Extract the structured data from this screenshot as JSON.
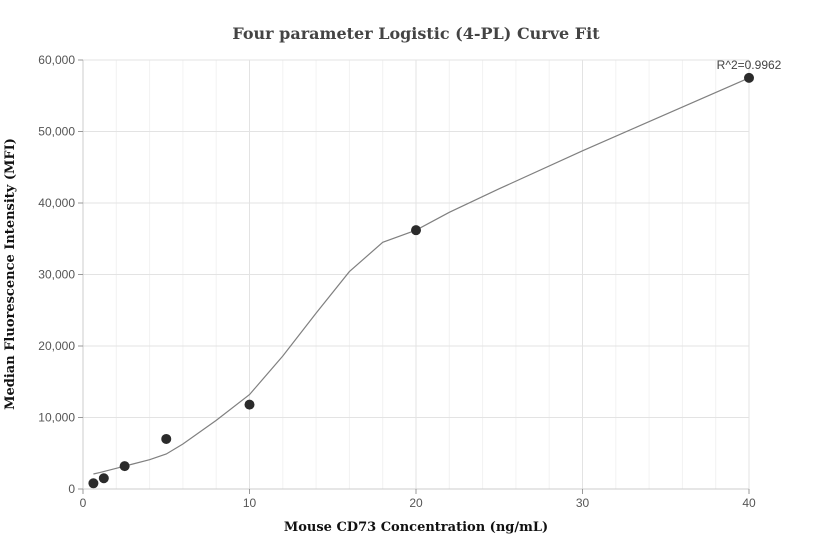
{
  "chart_data": {
    "type": "scatter",
    "title": "Four parameter Logistic (4-PL) Curve Fit",
    "xlabel": "Mouse CD73 Concentration (ng/mL)",
    "ylabel": "Median Fluorescence Intensity (MFI)",
    "xlim": [
      0,
      40
    ],
    "ylim": [
      0,
      60000
    ],
    "xticks": [
      0,
      10,
      20,
      30,
      40
    ],
    "xtick_labels": [
      "0",
      "10",
      "20",
      "30",
      "40"
    ],
    "yticks": [
      0,
      10000,
      20000,
      30000,
      40000,
      50000,
      60000
    ],
    "ytick_labels": [
      "0",
      "10,000",
      "20,000",
      "30,000",
      "40,000",
      "50,000",
      "60,000"
    ],
    "grid": true,
    "annotation": "R^2=0.9962",
    "series": [
      {
        "kind": "points",
        "x": [
          0.625,
          1.25,
          2.5,
          5,
          10,
          20,
          40
        ],
        "y": [
          800,
          1500,
          3200,
          7000,
          11800,
          36200,
          57500
        ]
      },
      {
        "kind": "fit-curve",
        "x": [
          0.625,
          1,
          2,
          3,
          4,
          5,
          6,
          8,
          10,
          12,
          14,
          16,
          18,
          20,
          22,
          25,
          30,
          35,
          40
        ],
        "y": [
          2100,
          2300,
          2900,
          3500,
          4100,
          4900,
          6300,
          9600,
          13200,
          18600,
          24600,
          30400,
          34500,
          36200,
          38700,
          42000,
          47300,
          52400,
          57500
        ]
      }
    ],
    "colors": {
      "points": "#2b2b2b",
      "curve": "#808080",
      "grid": "#e3e3e3",
      "axis": "#cccccc"
    }
  }
}
